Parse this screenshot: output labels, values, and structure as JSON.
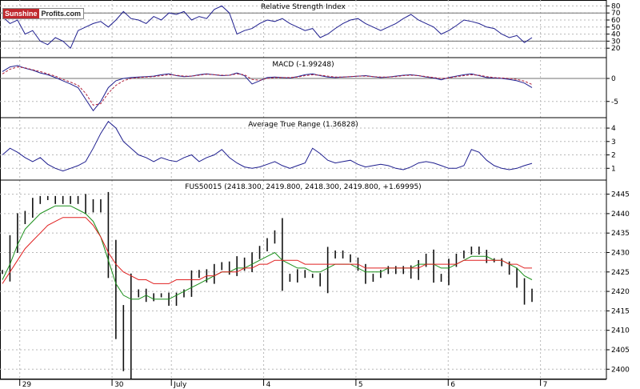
{
  "brand": {
    "part1": "Sunshine",
    "part2": "Profits.com"
  },
  "colors": {
    "price": "#111111",
    "ma_green": "#1a8f1a",
    "ma_red": "#e02020",
    "indicator": "#1f1f8f",
    "signal": "#b0203a",
    "grid": "#b8b8b8",
    "hline": "#707070"
  },
  "chart_data": [
    {
      "type": "line",
      "title": "Relative Strength Index",
      "y_ticks": [
        80,
        70,
        60,
        50,
        40,
        30,
        20
      ],
      "ylim": [
        10,
        85
      ],
      "reference_lines": [
        70,
        30
      ],
      "series": [
        {
          "values": [
            65,
            55,
            60,
            40,
            45,
            30,
            25,
            35,
            30,
            20,
            45,
            50,
            55,
            58,
            50,
            60,
            72,
            62,
            60,
            55,
            65,
            60,
            70,
            68,
            72,
            60,
            65,
            62,
            75,
            80,
            70,
            40,
            45,
            48,
            55,
            60,
            58,
            62,
            55,
            50,
            45,
            48,
            35,
            40,
            48,
            55,
            60,
            62,
            55,
            50,
            45,
            50,
            55,
            62,
            68,
            60,
            55,
            50,
            40,
            45,
            52,
            60,
            58,
            55,
            50,
            48,
            40,
            35,
            38,
            28,
            35
          ]
        }
      ]
    },
    {
      "type": "line",
      "title": "MACD (-1.99248)",
      "y_ticks": [
        0,
        -5
      ],
      "ylim": [
        -8,
        4
      ],
      "reference_lines": [
        0
      ],
      "series": [
        {
          "values": [
            1.5,
            2.5,
            2.8,
            2.2,
            1.8,
            1.2,
            0.8,
            0.2,
            -0.5,
            -1.2,
            -2,
            -4.5,
            -7,
            -5,
            -2,
            -0.5,
            0,
            0.2,
            0.3,
            0.4,
            0.5,
            0.8,
            1,
            0.6,
            0.4,
            0.5,
            0.8,
            1,
            0.8,
            0.6,
            0.7,
            1.2,
            0.6,
            -1.2,
            -0.5,
            0.2,
            0.3,
            0.2,
            0.1,
            0.4,
            0.8,
            1,
            0.6,
            0.3,
            0.2,
            0.3,
            0.4,
            0.5,
            0.6,
            0.4,
            0.2,
            0.3,
            0.5,
            0.7,
            0.8,
            0.6,
            0.3,
            0.1,
            -0.3,
            0.2,
            0.5,
            0.8,
            1,
            0.6,
            0.2,
            0.1,
            0,
            -0.2,
            -0.5,
            -1,
            -1.99
          ]
        },
        {
          "values": [
            1,
            2,
            2.5,
            2.3,
            1.9,
            1.5,
            1,
            0.5,
            -0.2,
            -0.8,
            -1.5,
            -3.2,
            -5.8,
            -5.5,
            -3.2,
            -1.5,
            -0.5,
            0,
            0.2,
            0.3,
            0.4,
            0.6,
            0.8,
            0.7,
            0.5,
            0.5,
            0.7,
            0.9,
            0.8,
            0.7,
            0.7,
            1,
            0.8,
            -0.2,
            -0.4,
            0,
            0.2,
            0.2,
            0.2,
            0.3,
            0.6,
            0.8,
            0.7,
            0.5,
            0.3,
            0.3,
            0.4,
            0.5,
            0.5,
            0.4,
            0.3,
            0.3,
            0.4,
            0.6,
            0.7,
            0.6,
            0.4,
            0.2,
            0,
            0.1,
            0.4,
            0.6,
            0.8,
            0.7,
            0.4,
            0.2,
            0.1,
            0,
            -0.2,
            -0.6,
            -1.3
          ]
        }
      ]
    },
    {
      "type": "line",
      "title": "Average True Range (1.36828)",
      "y_ticks": [
        4,
        3,
        2,
        1
      ],
      "ylim": [
        0.3,
        4.6
      ],
      "series": [
        {
          "values": [
            2,
            2.5,
            2.2,
            1.8,
            1.5,
            1.8,
            1.3,
            1,
            0.8,
            1,
            1.2,
            1.5,
            2.5,
            3.6,
            4.5,
            4,
            3,
            2.5,
            2,
            1.8,
            1.5,
            1.8,
            1.6,
            1.5,
            1.8,
            2,
            1.5,
            1.8,
            2,
            2.4,
            1.8,
            1.4,
            1.1,
            1,
            1.1,
            1.3,
            1.5,
            1.2,
            1,
            1.2,
            1.4,
            2.5,
            2.1,
            1.6,
            1.4,
            1.5,
            1.6,
            1.3,
            1.1,
            1.2,
            1.3,
            1.2,
            1,
            0.9,
            1.1,
            1.4,
            1.5,
            1.4,
            1.2,
            1,
            1,
            1.2,
            2.4,
            2.2,
            1.6,
            1.2,
            1,
            0.9,
            1,
            1.2,
            1.37
          ]
        }
      ]
    },
    {
      "type": "line",
      "title": "FUS50015 (2418.300, 2419.800, 2418.300, 2419.800, +1.69995)",
      "y_ticks": [
        2445,
        2440,
        2435,
        2430,
        2425,
        2420,
        2415,
        2410,
        2405,
        2400
      ],
      "ylim": [
        2398,
        2448
      ],
      "x_ticks": [
        {
          "label": "29",
          "at": 1
        },
        {
          "label": "30",
          "at": 15
        },
        {
          "label": "July",
          "at": 24
        },
        {
          "label": "4",
          "at": 38
        },
        {
          "label": "5",
          "at": 52
        },
        {
          "label": "6",
          "at": 66
        },
        {
          "label": "7",
          "at": 80
        }
      ],
      "x_range": [
        -2,
        90
      ],
      "series": [
        {
          "name": "price",
          "values": [
            2425,
            2432,
            2438,
            2440,
            2443,
            2444,
            2444,
            2443,
            2444,
            2443,
            2444,
            2441,
            2443,
            2441,
            2428,
            2413,
            2403,
            2419,
            2420,
            2418,
            2419,
            2419,
            2417,
            2419,
            2420,
            2424,
            2425,
            2423,
            2426,
            2427,
            2425,
            2428,
            2426,
            2429,
            2431,
            2433,
            2435,
            2424,
            2423,
            2425,
            2424,
            2424,
            2422,
            2429,
            2430,
            2429,
            2428,
            2426,
            2423,
            2424,
            2425,
            2426,
            2425,
            2426,
            2424,
            2427,
            2429,
            2424,
            2423,
            2427,
            2429,
            2430,
            2431,
            2430,
            2428,
            2428,
            2427,
            2425,
            2422,
            2418,
            2420
          ]
        },
        {
          "name": "ma-green",
          "values": [
            2423,
            2427,
            2432,
            2436,
            2438,
            2440,
            2441,
            2442,
            2442,
            2442,
            2441,
            2440,
            2438,
            2434,
            2428,
            2422,
            2419,
            2418,
            2418,
            2419,
            2418,
            2418,
            2418,
            2419,
            2420,
            2421,
            2422,
            2423,
            2424,
            2425,
            2425,
            2426,
            2426,
            2427,
            2428,
            2429,
            2430,
            2428,
            2427,
            2426,
            2426,
            2425,
            2425,
            2426,
            2427,
            2427,
            2427,
            2426,
            2425,
            2425,
            2425,
            2426,
            2426,
            2426,
            2426,
            2427,
            2427,
            2427,
            2426,
            2426,
            2427,
            2428,
            2429,
            2429,
            2429,
            2428,
            2428,
            2427,
            2426,
            2424,
            2423
          ]
        },
        {
          "name": "ma-red",
          "values": [
            2422,
            2425,
            2428,
            2431,
            2433,
            2435,
            2437,
            2438,
            2439,
            2439,
            2439,
            2439,
            2437,
            2434,
            2430,
            2427,
            2425,
            2424,
            2423,
            2423,
            2422,
            2422,
            2422,
            2423,
            2423,
            2423,
            2423,
            2424,
            2424,
            2425,
            2425,
            2425,
            2426,
            2426,
            2427,
            2427,
            2428,
            2428,
            2428,
            2428,
            2427,
            2427,
            2427,
            2427,
            2427,
            2427,
            2427,
            2427,
            2426,
            2426,
            2426,
            2426,
            2426,
            2426,
            2426,
            2426,
            2427,
            2427,
            2427,
            2427,
            2427,
            2428,
            2428,
            2428,
            2428,
            2428,
            2428,
            2427,
            2427,
            2426,
            2426
          ]
        }
      ]
    }
  ]
}
